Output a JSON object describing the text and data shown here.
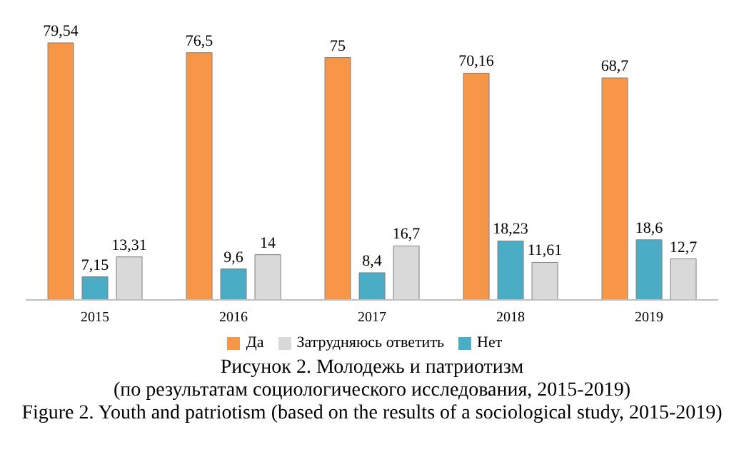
{
  "chart_data": {
    "type": "bar",
    "title": "Рисунок 2. Молодежь и патриотизм",
    "subtitle": "(по результатам социологического исследования,  2015-2019)",
    "annotations": [
      "Figure 2. Youth and patriotism (based on the results of a sociological study, 2015-2019)"
    ],
    "categories": [
      "2015",
      "2016",
      "2017",
      "2018",
      "2019"
    ],
    "series": [
      {
        "name": "Да",
        "color": "#f79646",
        "values": [
          79.54,
          76.5,
          75,
          70.16,
          68.7
        ],
        "value_labels": [
          "79,54",
          "76,5",
          "75",
          "70,16",
          "68,7"
        ]
      },
      {
        "name": "Нет",
        "color": "#4bacc6",
        "values": [
          7.15,
          9.6,
          8.4,
          18.23,
          18.6
        ],
        "value_labels": [
          "7,15",
          "9,6",
          "8,4",
          "18,23",
          "18,6"
        ]
      },
      {
        "name": "Затрудняюсь ответить",
        "color": "#d9d9d9",
        "values": [
          13.31,
          14,
          16.7,
          11.61,
          12.7
        ],
        "value_labels": [
          "13,31",
          "14",
          "16,7",
          "11,61",
          "12,7"
        ]
      }
    ],
    "legend": "bottom"
  }
}
